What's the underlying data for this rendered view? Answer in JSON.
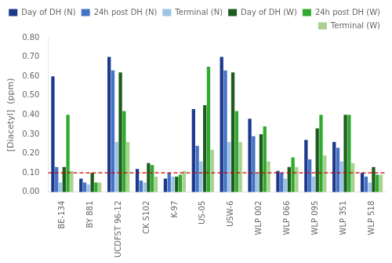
{
  "chart_data": {
    "type": "bar",
    "categories": [
      "BE-134",
      "BY 881",
      "UCDFST 96-12",
      "CK S102",
      "K-97",
      "US-05",
      "USW-6",
      "WLP 002",
      "WLP 066",
      "WLP 095",
      "WLP 351",
      "WLP 518"
    ],
    "series": [
      {
        "name": "Day of DH (N)",
        "color": "#1B3A8C",
        "values": [
          0.6,
          0.07,
          0.7,
          0.12,
          0.07,
          0.43,
          0.7,
          0.38,
          0.11,
          0.27,
          0.26,
          0.1
        ]
      },
      {
        "name": "24h post DH (N)",
        "color": "#4472C4",
        "values": [
          0.13,
          0.05,
          0.63,
          0.06,
          0.1,
          0.24,
          0.63,
          0.29,
          0.1,
          0.17,
          0.23,
          0.08
        ]
      },
      {
        "name": "Terminal (N)",
        "color": "#9DC3E6",
        "values": [
          0.05,
          0.04,
          0.26,
          0.05,
          0.08,
          0.16,
          0.26,
          0.1,
          0.07,
          0.08,
          0.16,
          0.05
        ]
      },
      {
        "name": "Day of DH (W)",
        "color": "#1E5C1E",
        "values": [
          0.13,
          0.1,
          0.62,
          0.15,
          0.08,
          0.45,
          0.62,
          0.3,
          0.13,
          0.33,
          0.4,
          0.13
        ]
      },
      {
        "name": "24h post DH (W)",
        "color": "#2EAA2E",
        "values": [
          0.4,
          0.05,
          0.42,
          0.14,
          0.09,
          0.65,
          0.42,
          0.34,
          0.18,
          0.4,
          0.4,
          0.09
        ]
      },
      {
        "name": "Terminal (W)",
        "color": "#A9D18E",
        "values": [
          0.11,
          0.05,
          0.26,
          0.08,
          0.11,
          0.22,
          0.26,
          0.16,
          0.13,
          0.19,
          0.15,
          0.09
        ]
      }
    ],
    "ylabel": "[Diacetyl]  (ppm)",
    "ylim": [
      0.0,
      0.8
    ],
    "yticks": [
      {
        "value": 0.0,
        "label": "0.00"
      },
      {
        "value": 0.1,
        "label": "0.10"
      },
      {
        "value": 0.2,
        "label": "0.20"
      },
      {
        "value": 0.3,
        "label": "0.30"
      },
      {
        "value": 0.4,
        "label": "0.40"
      },
      {
        "value": 0.5,
        "label": "0.50"
      },
      {
        "value": 0.6,
        "label": "0.60"
      },
      {
        "value": 0.7,
        "label": "0.70"
      },
      {
        "value": 0.8,
        "label": "0.80"
      }
    ],
    "threshold": {
      "value": 0.1,
      "color": "#CC0000",
      "line_style": "dashed"
    },
    "grid": false,
    "legend": "upper right"
  }
}
